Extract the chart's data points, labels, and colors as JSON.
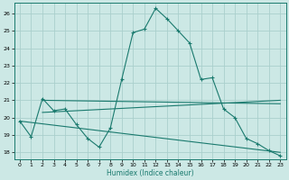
{
  "xlabel": "Humidex (Indice chaleur)",
  "bg_color": "#cce8e5",
  "grid_color": "#aacfcc",
  "line_color": "#1a7a6e",
  "xlim": [
    -0.5,
    23.5
  ],
  "ylim": [
    17.6,
    26.6
  ],
  "yticks": [
    18,
    19,
    20,
    21,
    22,
    23,
    24,
    25,
    26
  ],
  "xticks": [
    0,
    1,
    2,
    3,
    4,
    5,
    6,
    7,
    8,
    9,
    10,
    11,
    12,
    13,
    14,
    15,
    16,
    17,
    18,
    19,
    20,
    21,
    22,
    23
  ],
  "curve1_x": [
    0,
    1,
    2,
    3,
    4,
    5,
    6,
    7,
    8,
    9,
    10,
    11,
    12,
    13,
    14,
    15,
    16,
    17,
    18,
    19,
    20,
    21,
    22,
    23
  ],
  "curve1_y": [
    19.8,
    18.9,
    21.1,
    20.4,
    20.5,
    19.6,
    18.8,
    18.3,
    19.4,
    22.2,
    24.9,
    25.1,
    26.3,
    25.7,
    25.0,
    24.3,
    22.2,
    22.3,
    20.5,
    20.0,
    18.8,
    18.5,
    18.1,
    17.8
  ],
  "line2_x": [
    2,
    23
  ],
  "line2_y": [
    21.0,
    20.8
  ],
  "line3_x": [
    2,
    23
  ],
  "line3_y": [
    20.3,
    21.0
  ],
  "line4_x": [
    0,
    23
  ],
  "line4_y": [
    19.8,
    18.0
  ]
}
